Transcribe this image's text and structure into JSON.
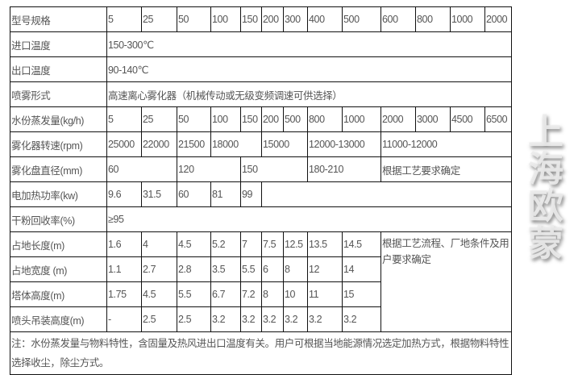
{
  "rows": {
    "model": {
      "label": "型号规格",
      "values": [
        "5",
        "25",
        "50",
        "100",
        "150",
        "200",
        "300",
        "400",
        "500",
        "600",
        "800",
        "1000",
        "2000"
      ]
    },
    "inlet_temp": {
      "label": "进口温度",
      "value": "150-300℃"
    },
    "outlet_temp": {
      "label": "出口温度",
      "value": "90-140℃"
    },
    "spray_form": {
      "label": "喷雾形式",
      "value": "高速离心雾化器（机械传动或无级变频调速可供选择）"
    },
    "evaporation": {
      "label": "水份蒸发量(kg/h)",
      "values": [
        "5",
        "25",
        "50",
        "100",
        "150",
        "200",
        "500",
        "800",
        "1000",
        "2000",
        "3000",
        "4500",
        "6500"
      ]
    },
    "atomizer_speed": {
      "label": "雾化器转速(rpm)",
      "values": [
        "25000",
        "22000",
        "21500",
        "18000",
        "15000",
        "12000-13000",
        "11000-12000"
      ]
    },
    "disc_diameter": {
      "label": "雾化盘直径(mm)",
      "values": [
        "60",
        "120",
        "150",
        "180-210",
        "根据工艺要求确定"
      ]
    },
    "heating_power": {
      "label": "电加热功率(kw)",
      "values": [
        "9.6",
        "31.5",
        "60",
        "81",
        "99"
      ]
    },
    "recovery": {
      "label": "干粉回收率(%)",
      "value": "≥95"
    },
    "length": {
      "label": "占地长度(m)",
      "values": [
        "1.6",
        "4",
        "4.5",
        "5.2",
        "7",
        "7.5",
        "12.5",
        "13.5",
        "14.5"
      ]
    },
    "width": {
      "label": "占地宽度 (m)",
      "values": [
        "1.1",
        "2.7",
        "2.8",
        "3.5",
        "5.5",
        "6",
        "8",
        "12",
        "14"
      ]
    },
    "height": {
      "label": "塔体高度(m)",
      "values": [
        "1.75",
        "4.5",
        "5.5",
        "6.7",
        "7.2",
        "8",
        "10",
        "11",
        "15"
      ]
    },
    "nozzle_height": {
      "label": "喷头吊装高度(m)",
      "values": [
        "-",
        "2.5",
        "2.5",
        "3.2",
        "3.2",
        "3.2",
        "3.2",
        "3.2",
        "3.2"
      ]
    },
    "size_note": "根据工艺流程、厂地条件及用户要求确定"
  },
  "note": "注：水份蒸发量与物料特性，含固量及热风进出口温度有关。用户可根据当地能源情况选定加热方式，根据物料特性选择收尘，除尘方式。",
  "watermark": "上海欧蒙"
}
